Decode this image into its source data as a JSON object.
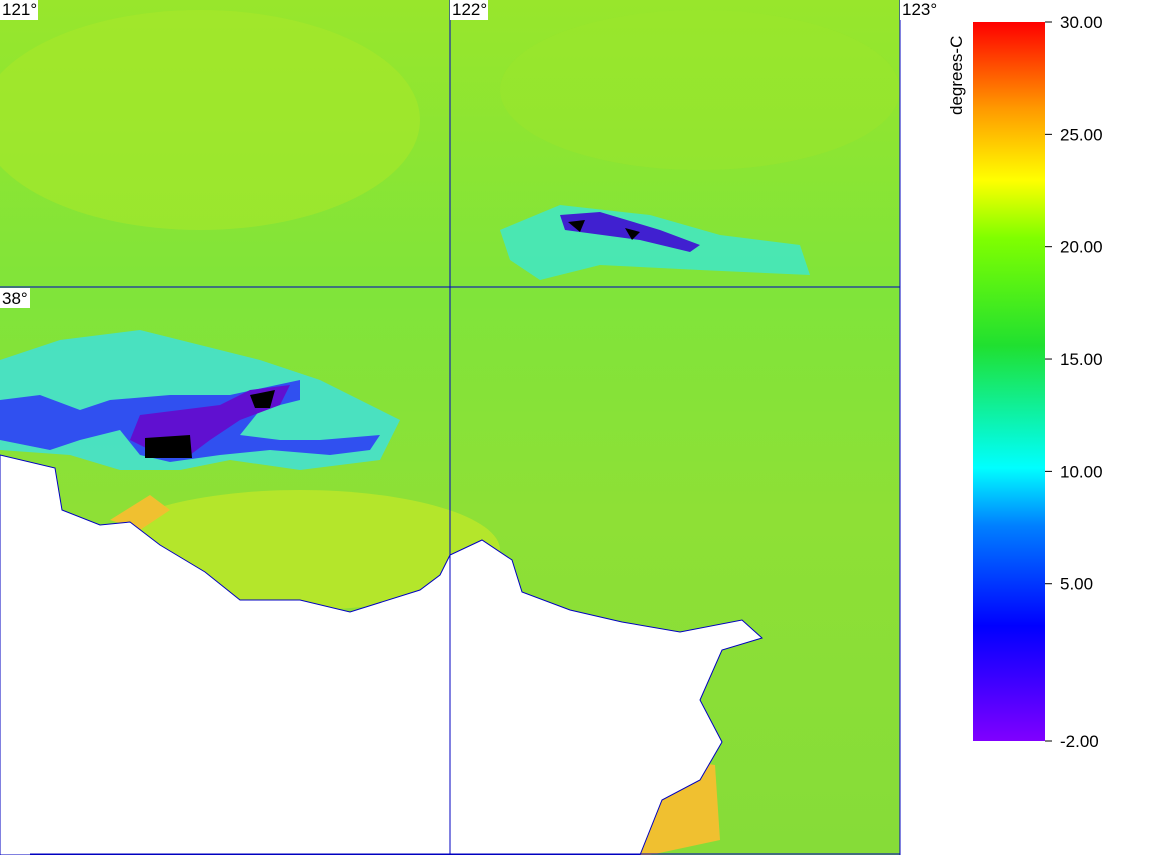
{
  "map": {
    "lon_labels": [
      "121°",
      "122°",
      "123°"
    ],
    "lat_labels": [
      "38°"
    ]
  },
  "colorbar": {
    "unit": "degrees-C",
    "range": [
      -2,
      30
    ],
    "ticks": [
      {
        "value": 30,
        "label": "30.00"
      },
      {
        "value": 25,
        "label": "25.00"
      },
      {
        "value": 20,
        "label": "20.00"
      },
      {
        "value": 15,
        "label": "15.00"
      },
      {
        "value": 10,
        "label": "10.00"
      },
      {
        "value": 5,
        "label": "5.00"
      },
      {
        "value": -2,
        "label": "-2.00"
      }
    ]
  }
}
